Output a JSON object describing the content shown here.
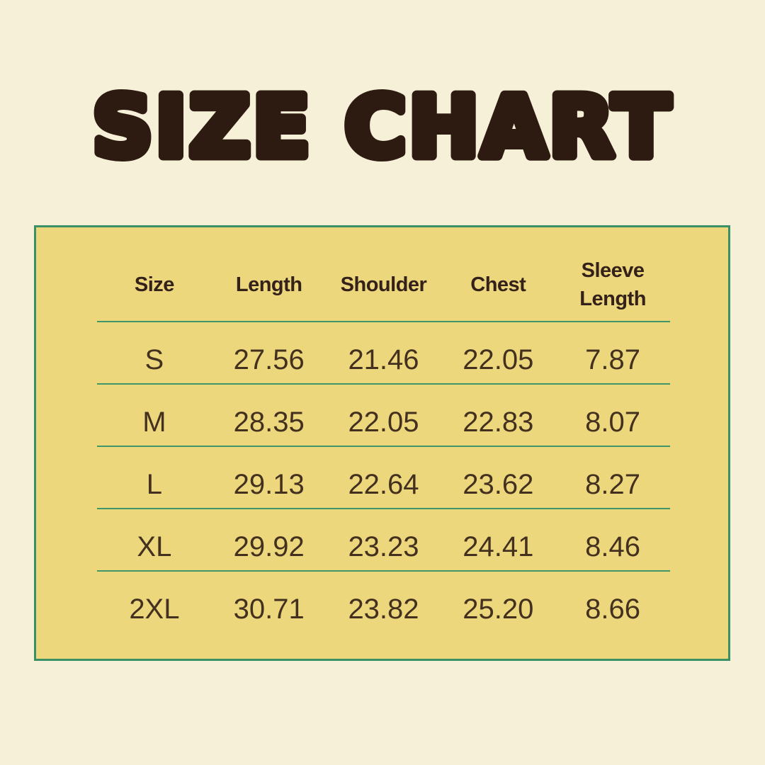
{
  "page": {
    "background_color": "#f7f0d8",
    "title": "SIZE CHART",
    "title_color": "#2d1b12"
  },
  "table": {
    "background_color": "#ecd77d",
    "border_color": "#3a9065",
    "rule_color": "#3f9768",
    "header_text_color": "#33211a",
    "data_text_color": "#44301f",
    "columns": [
      "Size",
      "Length",
      "Shoulder",
      "Chest",
      "Sleeve Length"
    ],
    "rows": [
      {
        "size": "S",
        "length": "27.56",
        "shoulder": "21.46",
        "chest": "22.05",
        "sleeve_length": "7.87"
      },
      {
        "size": "M",
        "length": "28.35",
        "shoulder": "22.05",
        "chest": "22.83",
        "sleeve_length": "8.07"
      },
      {
        "size": "L",
        "length": "29.13",
        "shoulder": "22.64",
        "chest": "23.62",
        "sleeve_length": "8.27"
      },
      {
        "size": "XL",
        "length": "29.92",
        "shoulder": "23.23",
        "chest": "24.41",
        "sleeve_length": "8.46"
      },
      {
        "size": "2XL",
        "length": "30.71",
        "shoulder": "23.82",
        "chest": "25.20",
        "sleeve_length": "8.66"
      }
    ]
  },
  "chart_data": {
    "type": "table",
    "title": "SIZE CHART",
    "columns": [
      "Size",
      "Length",
      "Shoulder",
      "Chest",
      "Sleeve Length"
    ],
    "rows": [
      [
        "S",
        27.56,
        21.46,
        22.05,
        7.87
      ],
      [
        "M",
        28.35,
        22.05,
        22.83,
        8.07
      ],
      [
        "L",
        29.13,
        22.64,
        23.62,
        8.27
      ],
      [
        "XL",
        29.92,
        23.23,
        24.41,
        8.46
      ],
      [
        "2XL",
        30.71,
        23.82,
        25.2,
        8.66
      ]
    ],
    "layout": {
      "title_position": "top-center",
      "header_rule": true,
      "row_rules": true,
      "outer_border": true
    }
  }
}
